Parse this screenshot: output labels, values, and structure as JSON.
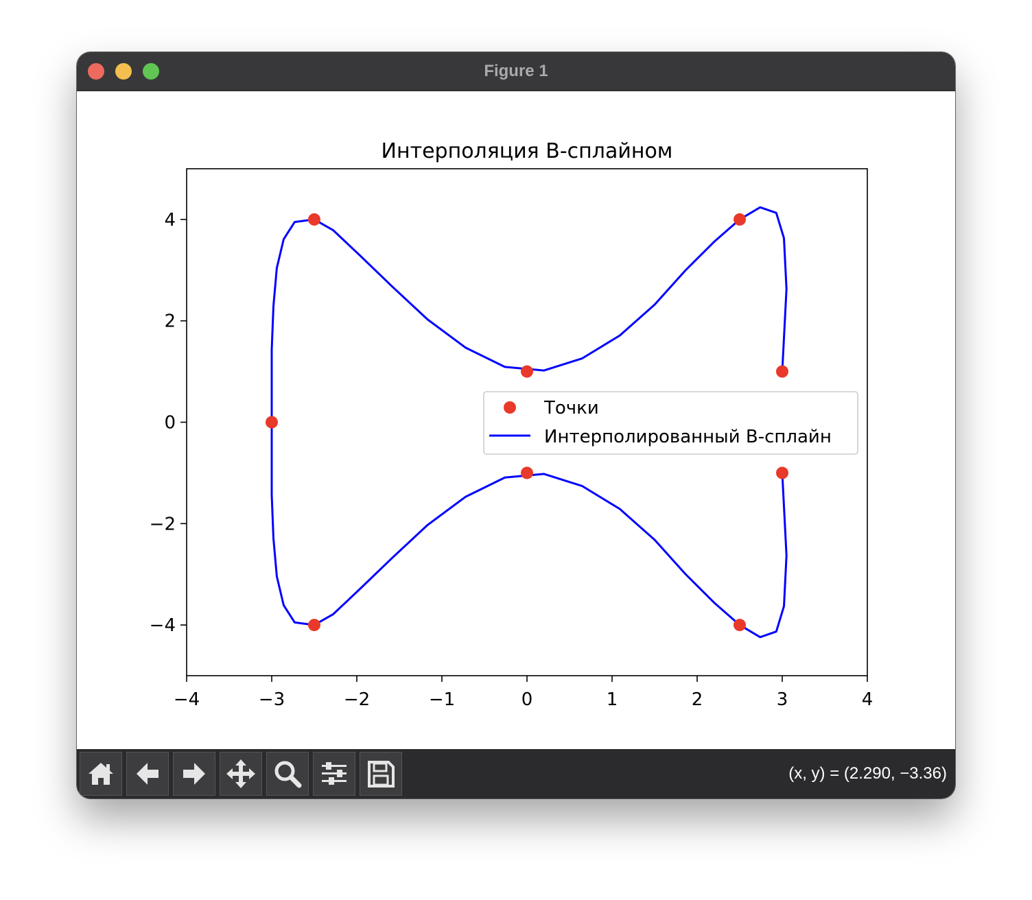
{
  "window": {
    "title": "Figure 1"
  },
  "toolbar": {
    "buttons": [
      {
        "name": "home-button",
        "icon": "home-icon"
      },
      {
        "name": "back-button",
        "icon": "arrow-left-icon"
      },
      {
        "name": "forward-button",
        "icon": "arrow-right-icon"
      },
      {
        "name": "pan-button",
        "icon": "move-icon"
      },
      {
        "name": "zoom-button",
        "icon": "magnifier-icon"
      },
      {
        "name": "configure-subplots-button",
        "icon": "sliders-icon"
      },
      {
        "name": "save-button",
        "icon": "floppy-disk-icon"
      }
    ],
    "coords": "(x, y) = (2.290, −3.36)"
  },
  "colors": {
    "titlebar": "#38383a",
    "toolbar": "#2b2b2d",
    "points": "#e8392a",
    "spline": "#0000ff"
  },
  "chart_data": {
    "type": "scatter",
    "title": "Интерполяция B-сплайном",
    "xlabel": "",
    "ylabel": "",
    "xlim": [
      -4,
      4
    ],
    "ylim": [
      -5,
      5
    ],
    "xticks": [
      {
        "value": -4,
        "label": "−4"
      },
      {
        "value": -3,
        "label": "−3"
      },
      {
        "value": -2,
        "label": "−2"
      },
      {
        "value": -1,
        "label": "−1"
      },
      {
        "value": 0,
        "label": "0"
      },
      {
        "value": 1,
        "label": "1"
      },
      {
        "value": 2,
        "label": "2"
      },
      {
        "value": 3,
        "label": "3"
      },
      {
        "value": 4,
        "label": "4"
      }
    ],
    "yticks": [
      {
        "value": -4,
        "label": "−4"
      },
      {
        "value": -2,
        "label": "−2"
      },
      {
        "value": 0,
        "label": "0"
      },
      {
        "value": 2,
        "label": "2"
      },
      {
        "value": 4,
        "label": "4"
      }
    ],
    "grid": false,
    "legend_position": "center-right",
    "series": [
      {
        "name": "Точки",
        "kind": "points",
        "color": "#e8392a",
        "points": [
          [
            3,
            1
          ],
          [
            2.5,
            4
          ],
          [
            0,
            1
          ],
          [
            -2.5,
            4
          ],
          [
            -3,
            0
          ],
          [
            -2.5,
            -4
          ],
          [
            0,
            -1
          ],
          [
            2.5,
            -4
          ],
          [
            3,
            -1
          ]
        ]
      },
      {
        "name": "Интерполированный B-сплайн",
        "kind": "line",
        "color": "#0000ff",
        "points": [
          [
            3.0,
            1.0
          ],
          [
            3.05,
            2.63
          ],
          [
            3.02,
            3.63
          ],
          [
            2.93,
            4.13
          ],
          [
            2.74,
            4.24
          ],
          [
            2.5,
            4.0
          ],
          [
            2.2,
            3.56
          ],
          [
            1.86,
            2.99
          ],
          [
            1.5,
            2.32
          ],
          [
            1.09,
            1.71
          ],
          [
            0.65,
            1.26
          ],
          [
            0.2,
            1.02
          ],
          [
            -0.26,
            1.09
          ],
          [
            -0.72,
            1.47
          ],
          [
            -1.17,
            2.03
          ],
          [
            -1.58,
            2.67
          ],
          [
            -1.97,
            3.3
          ],
          [
            -2.28,
            3.79
          ],
          [
            -2.5,
            4.0
          ],
          [
            -2.73,
            3.95
          ],
          [
            -2.86,
            3.61
          ],
          [
            -2.94,
            3.04
          ],
          [
            -2.98,
            2.29
          ],
          [
            -3.0,
            1.43
          ],
          [
            -3.0,
            0.0
          ],
          [
            -3.0,
            -1.43
          ],
          [
            -2.98,
            -2.29
          ],
          [
            -2.94,
            -3.04
          ],
          [
            -2.86,
            -3.61
          ],
          [
            -2.73,
            -3.95
          ],
          [
            -2.5,
            -4.0
          ],
          [
            -2.28,
            -3.79
          ],
          [
            -1.97,
            -3.3
          ],
          [
            -1.58,
            -2.67
          ],
          [
            -1.17,
            -2.03
          ],
          [
            -0.72,
            -1.47
          ],
          [
            -0.26,
            -1.09
          ],
          [
            0.2,
            -1.02
          ],
          [
            0.65,
            -1.26
          ],
          [
            1.09,
            -1.71
          ],
          [
            1.5,
            -2.32
          ],
          [
            1.86,
            -2.99
          ],
          [
            2.2,
            -3.56
          ],
          [
            2.5,
            -4.0
          ],
          [
            2.74,
            -4.24
          ],
          [
            2.93,
            -4.13
          ],
          [
            3.02,
            -3.63
          ],
          [
            3.05,
            -2.63
          ],
          [
            3.0,
            -1.0
          ]
        ]
      }
    ]
  }
}
